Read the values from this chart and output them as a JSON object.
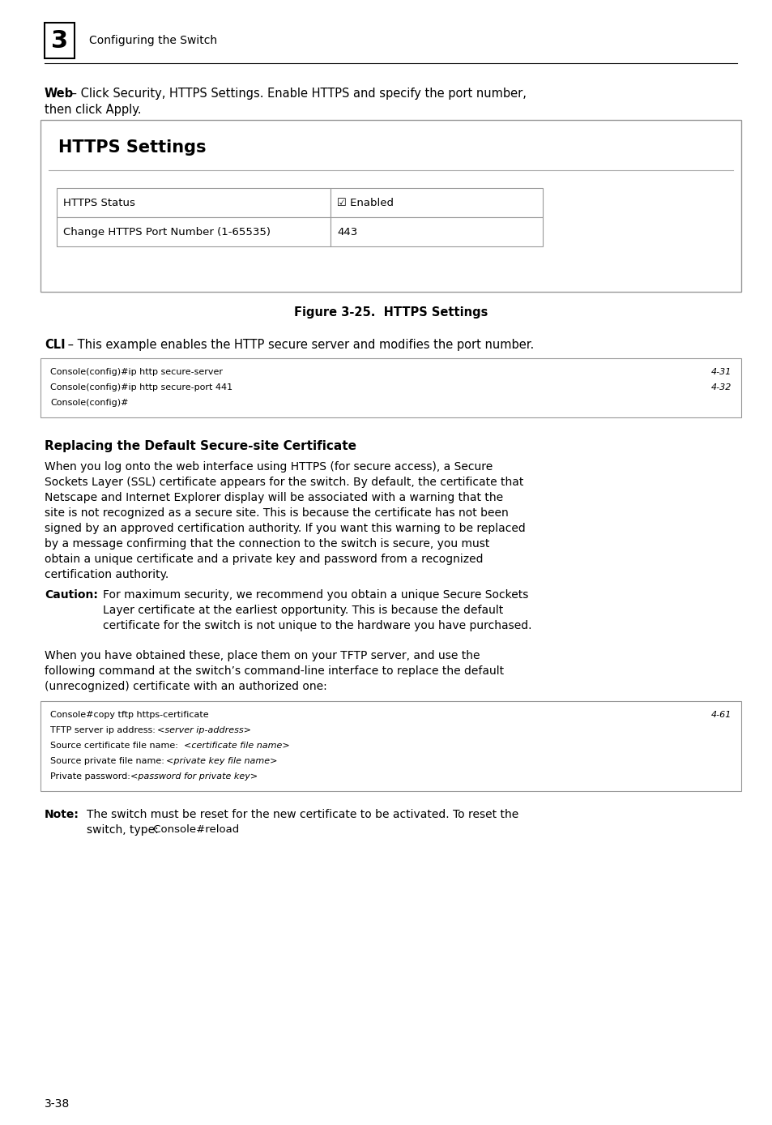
{
  "bg_color": "#ffffff",
  "chapter_num": "3",
  "chapter_title": "Configuring the Switch",
  "web_line1": "Web – Click Security, HTTPS Settings. Enable HTTPS and specify the port number,",
  "web_line2": "then click Apply.",
  "web_bold": "Web",
  "https_box_title": "HTTPS Settings",
  "https_row1_label": "HTTPS Status",
  "https_row1_value": "☑ Enabled",
  "https_row2_label": "Change HTTPS Port Number (1-65535)",
  "https_row2_value": "443",
  "figure_caption": "Figure 3-25.  HTTPS Settings",
  "cli_bold": "CLI",
  "cli_rest": " – This example enables the HTTP secure server and modifies the port number.",
  "cli_code_lines": [
    "Console(config)#ip http secure-server",
    "Console(config)#ip http secure-port 441",
    "Console(config)#"
  ],
  "cli_code_refs": [
    "4-31",
    "4-32",
    ""
  ],
  "section_title": "Replacing the Default Secure-site Certificate",
  "body1_lines": [
    "When you log onto the web interface using HTTPS (for secure access), a Secure",
    "Sockets Layer (SSL) certificate appears for the switch. By default, the certificate that",
    "Netscape and Internet Explorer display will be associated with a warning that the",
    "site is not recognized as a secure site. This is because the certificate has not been",
    "signed by an approved certification authority. If you want this warning to be replaced",
    "by a message confirming that the connection to the switch is secure, you must",
    "obtain a unique certificate and a private key and password from a recognized",
    "certification authority."
  ],
  "caution_bold": "Caution:",
  "caution_lines": [
    "For maximum security, we recommend you obtain a unique Secure Sockets",
    "Layer certificate at the earliest opportunity. This is because the default",
    "certificate for the switch is not unique to the hardware you have purchased."
  ],
  "body2_lines": [
    "When you have obtained these, place them on your TFTP server, and use the",
    "following command at the switch’s command-line interface to replace the default",
    "(unrecognized) certificate with an authorized one:"
  ],
  "cli2_lines": [
    [
      "Console#copy tftp https-certificate",
      "4-61"
    ],
    [
      "TFTP server ip address: ",
      "<server ip-address>",
      ""
    ],
    [
      "Source certificate file name: ",
      "<certificate file name>",
      ""
    ],
    [
      "Source private file name: ",
      "<private key file name>",
      ""
    ],
    [
      "Private password: ",
      "<password for private key>",
      ""
    ]
  ],
  "note_bold": "Note:",
  "note_line1": "The switch must be reset for the new certificate to be activated. To reset the",
  "note_line2": "switch, type:",
  "note_code": "Console#reload",
  "page_number": "3-38"
}
